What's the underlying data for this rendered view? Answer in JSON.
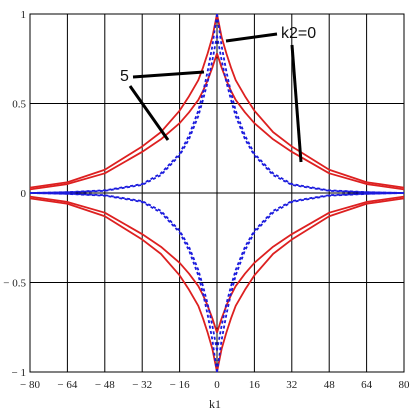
{
  "chart_data": {
    "type": "line",
    "title": "",
    "xlabel": "k1",
    "ylabel": "",
    "xlim": [
      -80,
      80
    ],
    "ylim": [
      -1,
      1
    ],
    "x_ticks": [
      -80,
      -64,
      -48,
      -32,
      -16,
      0,
      16,
      32,
      48,
      64,
      80
    ],
    "x_tick_labels": [
      "− 80",
      "− 64",
      "− 48",
      "− 32",
      "− 16",
      "0",
      "16",
      "32",
      "48",
      "64",
      "80"
    ],
    "y_ticks": [
      -1,
      -0.5,
      0,
      0.5,
      1
    ],
    "y_tick_labels": [
      "− 1",
      "− 0.5",
      "0",
      "0.5",
      "1"
    ],
    "grid": true,
    "colors": {
      "solid": "#dd2020",
      "dashed": "#1a1add",
      "grid": "#000000",
      "annotation": "#000000"
    },
    "annotations": [
      {
        "text": "k2=0"
      },
      {
        "text": "5"
      }
    ],
    "series": [
      {
        "style": "solid",
        "color": "#dd2020",
        "x": [
          0,
          2,
          4,
          6,
          8,
          12,
          16,
          24,
          32,
          48,
          64,
          80
        ],
        "y": [
          1.0,
          0.87,
          0.78,
          0.7,
          0.63,
          0.54,
          0.46,
          0.34,
          0.26,
          0.13,
          0.06,
          0.03
        ]
      },
      {
        "style": "solid",
        "color": "#dd2020",
        "x": [
          0,
          2,
          4,
          6,
          8,
          12,
          16,
          24,
          32,
          48,
          64,
          80
        ],
        "y": [
          0.78,
          0.7,
          0.63,
          0.57,
          0.52,
          0.45,
          0.39,
          0.3,
          0.23,
          0.11,
          0.05,
          0.02
        ]
      },
      {
        "style": "dashed",
        "color": "#1a1add",
        "x": [
          0,
          2,
          4,
          6,
          8,
          12,
          16,
          24,
          32,
          48,
          64,
          80
        ],
        "y": [
          1.0,
          0.82,
          0.68,
          0.56,
          0.46,
          0.32,
          0.22,
          0.11,
          0.05,
          0.015,
          0.005,
          0.0
        ]
      },
      {
        "style": "dashed",
        "color": "#1a1add",
        "x": [
          0,
          2,
          4,
          6,
          8,
          12,
          16,
          24,
          32,
          48,
          64,
          80
        ],
        "y": [
          0.88,
          0.74,
          0.62,
          0.52,
          0.43,
          0.3,
          0.21,
          0.1,
          0.045,
          0.012,
          0.004,
          0.0
        ]
      }
    ]
  }
}
